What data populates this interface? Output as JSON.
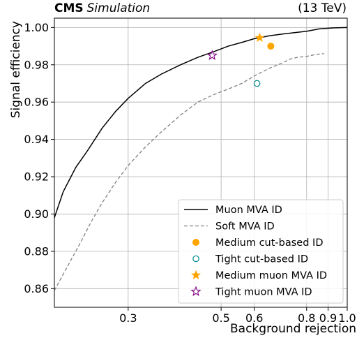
{
  "header": {
    "experiment": "CMS",
    "qualifier": "Simulation",
    "energy": "(13 TeV)"
  },
  "chart_data": {
    "type": "line",
    "xlabel": "Background rejection",
    "ylabel": "Signal efficiency",
    "xscale": "log",
    "xlim": [
      0.2,
      1.0
    ],
    "ylim": [
      0.85,
      1.005
    ],
    "grid": true,
    "legend_position": "bottom-right",
    "x_ticks": [
      {
        "value": 0.3,
        "label": "0.3"
      },
      {
        "value": 0.5,
        "label": "0.5"
      },
      {
        "value": 0.6,
        "label": "0.6"
      },
      {
        "value": 0.8,
        "label": "0.8"
      },
      {
        "value": 0.9,
        "label": "0.9"
      },
      {
        "value": 1.0,
        "label": "1.0"
      }
    ],
    "y_ticks": [
      {
        "value": 0.86,
        "label": "0.86"
      },
      {
        "value": 0.88,
        "label": "0.88"
      },
      {
        "value": 0.9,
        "label": "0.90"
      },
      {
        "value": 0.92,
        "label": "0.92"
      },
      {
        "value": 0.94,
        "label": "0.94"
      },
      {
        "value": 0.96,
        "label": "0.96"
      },
      {
        "value": 0.98,
        "label": "0.98"
      },
      {
        "value": 1.0,
        "label": "1.00"
      }
    ],
    "series": [
      {
        "name": "Muon MVA ID",
        "kind": "line",
        "style": "solid",
        "color": "#000000",
        "points": [
          [
            0.2,
            0.898
          ],
          [
            0.21,
            0.912
          ],
          [
            0.225,
            0.925
          ],
          [
            0.24,
            0.934
          ],
          [
            0.26,
            0.946
          ],
          [
            0.28,
            0.955
          ],
          [
            0.3,
            0.962
          ],
          [
            0.33,
            0.97
          ],
          [
            0.36,
            0.975
          ],
          [
            0.4,
            0.98
          ],
          [
            0.44,
            0.984
          ],
          [
            0.48,
            0.987
          ],
          [
            0.52,
            0.99
          ],
          [
            0.56,
            0.992
          ],
          [
            0.6,
            0.994
          ],
          [
            0.65,
            0.9955
          ],
          [
            0.7,
            0.9965
          ],
          [
            0.8,
            0.998
          ],
          [
            0.86,
            0.9993
          ],
          [
            0.93,
            0.9998
          ],
          [
            1.0,
            1.0
          ]
        ]
      },
      {
        "name": "Soft MVA ID",
        "kind": "line",
        "style": "dashed",
        "color": "#808080",
        "points": [
          [
            0.2,
            0.859
          ],
          [
            0.215,
            0.872
          ],
          [
            0.23,
            0.884
          ],
          [
            0.245,
            0.896
          ],
          [
            0.26,
            0.906
          ],
          [
            0.28,
            0.917
          ],
          [
            0.3,
            0.926
          ],
          [
            0.33,
            0.936
          ],
          [
            0.36,
            0.944
          ],
          [
            0.4,
            0.953
          ],
          [
            0.44,
            0.96
          ],
          [
            0.48,
            0.964
          ],
          [
            0.52,
            0.967
          ],
          [
            0.56,
            0.97
          ],
          [
            0.6,
            0.974
          ],
          [
            0.65,
            0.978
          ],
          [
            0.7,
            0.981
          ],
          [
            0.73,
            0.983
          ],
          [
            0.76,
            0.984
          ],
          [
            0.8,
            0.9845
          ],
          [
            0.84,
            0.9855
          ],
          [
            0.88,
            0.986
          ]
        ]
      },
      {
        "name": "Medium cut-based ID",
        "kind": "marker",
        "marker": "circle-filled",
        "color": "#ffa500",
        "points": [
          [
            0.657,
            0.99
          ]
        ]
      },
      {
        "name": "Tight cut-based ID",
        "kind": "marker",
        "marker": "circle-open",
        "color": "#008b8b",
        "points": [
          [
            0.609,
            0.97
          ]
        ]
      },
      {
        "name": "Medium muon MVA ID",
        "kind": "marker",
        "marker": "star-filled",
        "color": "#ffa500",
        "points": [
          [
            0.618,
            0.9945
          ]
        ]
      },
      {
        "name": "Tight muon MVA ID",
        "kind": "marker",
        "marker": "star-open",
        "color": "#800080",
        "points": [
          [
            0.476,
            0.985
          ]
        ]
      }
    ]
  }
}
